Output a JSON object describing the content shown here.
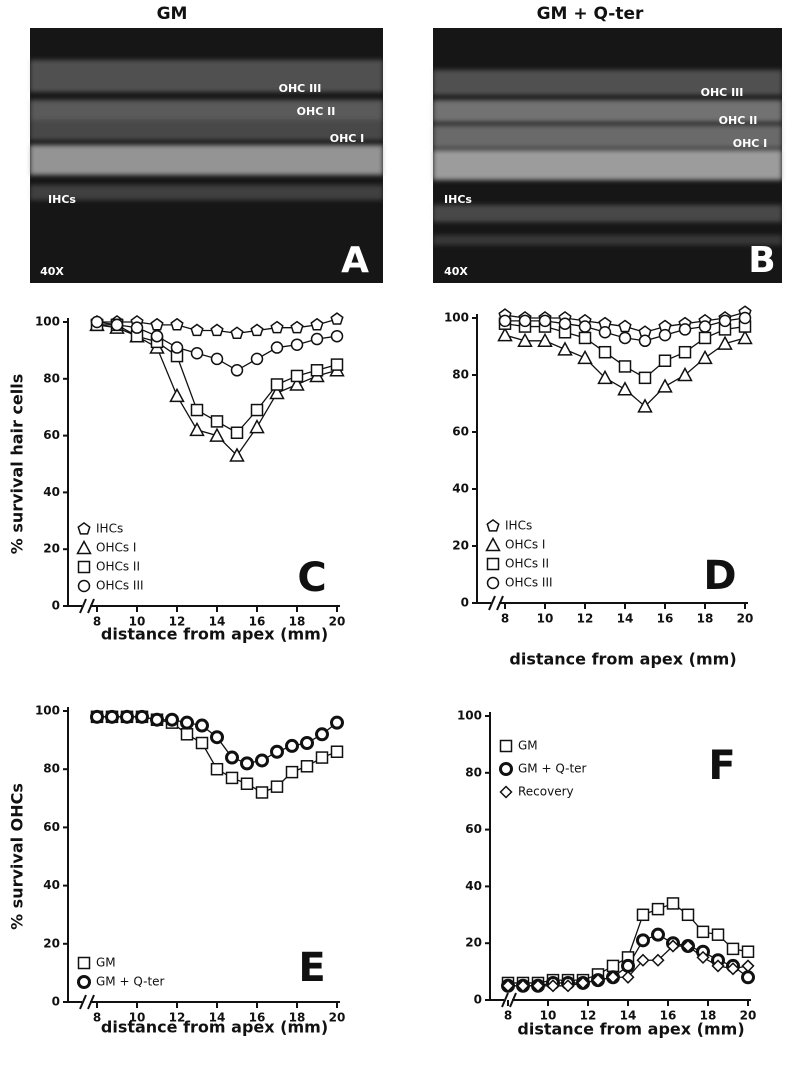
{
  "panels": [
    {
      "title": "GM",
      "letter": "A",
      "magnification": "40X",
      "labels": [
        "OHC III",
        "OHC II",
        "OHC I",
        "IHCs"
      ]
    },
    {
      "title": "GM + Q-ter",
      "letter": "B",
      "magnification": "40X",
      "labels": [
        "OHC III",
        "OHC II",
        "OHC I",
        "IHCs"
      ]
    }
  ],
  "chart_data": [
    {
      "type": "line",
      "panel_label": "C",
      "y_label": "% survival hair cells",
      "x_label": "distance from apex (mm)",
      "x": [
        8,
        9,
        10,
        11,
        12,
        13,
        14,
        15,
        16,
        17,
        18,
        19,
        20
      ],
      "xlim": [
        6.55,
        20
      ],
      "xticks": [
        8,
        10,
        12,
        14,
        16,
        18,
        20
      ],
      "ylim": [
        0,
        100
      ],
      "yticks": [
        0,
        20,
        40,
        60,
        80,
        100
      ],
      "legend": "lower left",
      "series": [
        {
          "name": "IHCs",
          "marker": "pentagon",
          "color": "#111111",
          "values": [
            100,
            100,
            100,
            99,
            99,
            97,
            97,
            96,
            97,
            98,
            98,
            99,
            101
          ]
        },
        {
          "name": "OHCs I",
          "marker": "triangle",
          "color": "#111111",
          "values": [
            99,
            98,
            95,
            91,
            74,
            62,
            60,
            53,
            63,
            75,
            78,
            81,
            83
          ]
        },
        {
          "name": "OHCs II",
          "marker": "square",
          "color": "#111111",
          "values": [
            99,
            99,
            95,
            93,
            88,
            69,
            65,
            61,
            69,
            78,
            81,
            83,
            85
          ]
        },
        {
          "name": "OHCs III",
          "marker": "circle",
          "color": "#111111",
          "values": [
            100,
            99,
            98,
            95,
            91,
            89,
            87,
            83,
            87,
            91,
            92,
            94,
            95
          ]
        }
      ]
    },
    {
      "type": "line",
      "panel_label": "D",
      "x_label": "distance from apex (mm)",
      "x": [
        8,
        9,
        10,
        11,
        12,
        13,
        14,
        15,
        16,
        17,
        18,
        19,
        20
      ],
      "xlim": [
        6.6,
        20
      ],
      "xticks": [
        8,
        10,
        12,
        14,
        16,
        18,
        20
      ],
      "ylim": [
        0,
        100
      ],
      "yticks": [
        0,
        20,
        40,
        60,
        80,
        100
      ],
      "legend": "lower left",
      "series": [
        {
          "name": "IHCs",
          "marker": "pentagon",
          "color": "#111111",
          "values": [
            101,
            100,
            100,
            100,
            99,
            98,
            97,
            95,
            97,
            98,
            99,
            100,
            102
          ]
        },
        {
          "name": "OHCs I",
          "marker": "triangle",
          "color": "#111111",
          "values": [
            94,
            92,
            92,
            89,
            86,
            79,
            75,
            69,
            76,
            80,
            86,
            91,
            93
          ]
        },
        {
          "name": "OHCs II",
          "marker": "square",
          "color": "#111111",
          "values": [
            98,
            97,
            97,
            95,
            93,
            88,
            83,
            79,
            85,
            88,
            93,
            96,
            97
          ]
        },
        {
          "name": "OHCs III",
          "marker": "circle",
          "color": "#111111",
          "values": [
            99,
            99,
            99,
            98,
            97,
            95,
            93,
            92,
            94,
            96,
            97,
            99,
            100
          ]
        }
      ]
    },
    {
      "type": "line",
      "panel_label": "E",
      "y_label": "% survival OHCs",
      "x_label": "distance from apex (mm)",
      "x": [
        8,
        8.75,
        9.5,
        10.25,
        11,
        11.75,
        12.5,
        13.25,
        14,
        14.75,
        15.5,
        16.25,
        17,
        17.75,
        18.5,
        19.25,
        20
      ],
      "xlim": [
        6.55,
        20
      ],
      "xticks": [
        8,
        10,
        12,
        14,
        16,
        18,
        20
      ],
      "ylim": [
        0,
        100
      ],
      "yticks": [
        0,
        20,
        40,
        60,
        80,
        100
      ],
      "legend": "lower left",
      "series": [
        {
          "name": "GM",
          "marker": "square",
          "color": "#111111",
          "values": [
            98,
            98,
            98,
            98,
            97,
            96,
            92,
            89,
            80,
            77,
            75,
            72,
            74,
            79,
            81,
            84,
            86
          ]
        },
        {
          "name": "GM + Q-ter",
          "marker": "circle-bold",
          "color": "#111111",
          "values": [
            98,
            98,
            98,
            98,
            97,
            97,
            96,
            95,
            91,
            84,
            82,
            83,
            86,
            88,
            89,
            92,
            96
          ]
        }
      ]
    },
    {
      "type": "line",
      "panel_label": "F",
      "x_label": "distance from apex (mm)",
      "x": [
        8,
        8.75,
        9.5,
        10.25,
        11,
        11.75,
        12.5,
        13.25,
        14,
        14.75,
        15.5,
        16.25,
        17,
        17.75,
        18.5,
        19.25,
        20
      ],
      "xlim": [
        7.1,
        20
      ],
      "xticks": [
        8,
        10,
        12,
        14,
        16,
        18,
        20
      ],
      "ylim": [
        0,
        100
      ],
      "yticks": [
        0,
        20,
        40,
        60,
        80,
        100
      ],
      "legend": "upper left",
      "series": [
        {
          "name": "GM",
          "marker": "square",
          "color": "#111111",
          "values": [
            6,
            6,
            6,
            7,
            7,
            7,
            9,
            12,
            15,
            30,
            32,
            34,
            30,
            24,
            23,
            18,
            17
          ]
        },
        {
          "name": "GM + Q-ter",
          "marker": "circle-bold",
          "color": "#111111",
          "values": [
            5,
            5,
            5,
            6,
            6,
            6,
            7,
            8,
            12,
            21,
            23,
            20,
            19,
            17,
            14,
            12,
            8
          ]
        },
        {
          "name": "Recovery",
          "marker": "diamond",
          "color": "#111111",
          "values": [
            5,
            5,
            5,
            5,
            5,
            6,
            7,
            8,
            8,
            14,
            14,
            19,
            19,
            15,
            12,
            11,
            12
          ]
        }
      ]
    }
  ]
}
